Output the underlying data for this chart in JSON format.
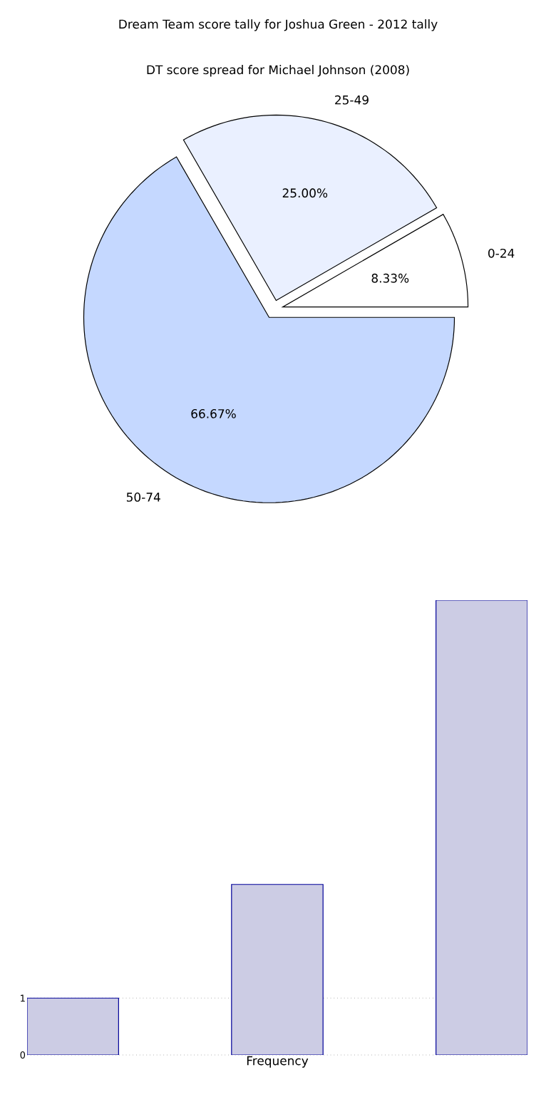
{
  "chart_data": [
    {
      "type": "pie",
      "title": "DT score spread for Michael Johnson (2008)",
      "categories": [
        "0-24",
        "25-49",
        "50-74"
      ],
      "values": [
        8.33,
        25,
        66.67
      ],
      "colors": [
        "#ffffff",
        "#eaf0ff",
        "#c5d8ff"
      ],
      "value_labels": [
        "8.33%",
        "25.00%",
        "66.67%"
      ]
    },
    {
      "type": "bar",
      "title": "Dream Team score tally for Joshua Green - 2012 tally",
      "xlabel": "Frequency",
      "categories": [
        null,
        null,
        null
      ],
      "values": [
        1,
        3,
        8
      ],
      "color": "#ccccE4",
      "ylim": [
        0,
        8
      ],
      "yticks": [
        0,
        1
      ],
      "grid": "y"
    }
  ]
}
